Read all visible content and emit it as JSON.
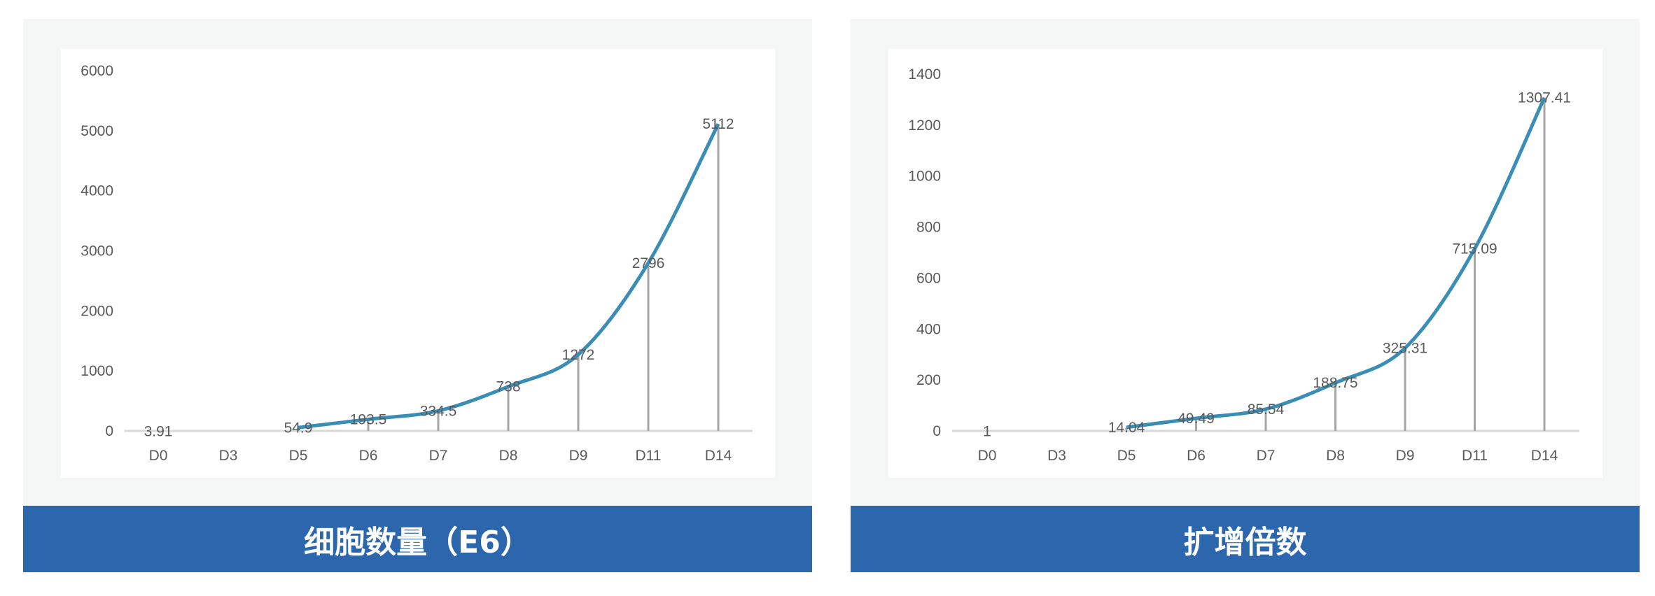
{
  "chart_data": [
    {
      "type": "line",
      "title": "细胞数量（E6）",
      "categories": [
        "D0",
        "D3",
        "D5",
        "D6",
        "D7",
        "D8",
        "D9",
        "D11",
        "D14"
      ],
      "values": [
        3.91,
        null,
        54.9,
        193.5,
        334.5,
        738,
        1272,
        2796,
        5112
      ],
      "data_labels": [
        "3.91",
        "",
        "54.9",
        "193.5",
        "334.5",
        "738",
        "1272",
        "2796",
        "5112"
      ],
      "ylim": [
        0,
        6000
      ],
      "yticks": [
        0,
        1000,
        2000,
        3000,
        4000,
        5000,
        6000
      ],
      "grid": false,
      "drop_lines": true,
      "line_color": "#3a8db4"
    },
    {
      "type": "line",
      "title": "扩增倍数",
      "categories": [
        "D0",
        "D3",
        "D5",
        "D6",
        "D7",
        "D8",
        "D9",
        "D11",
        "D14"
      ],
      "values": [
        1,
        null,
        14.04,
        49.49,
        85.54,
        188.75,
        325.31,
        715.09,
        1307.41
      ],
      "data_labels": [
        "1",
        "",
        "14.04",
        "49.49",
        "85.54",
        "188.75",
        "325.31",
        "715.09",
        "1307.41"
      ],
      "ylim": [
        0,
        1400
      ],
      "yticks": [
        0,
        200,
        400,
        600,
        800,
        1000,
        1200,
        1400
      ],
      "grid": false,
      "drop_lines": true,
      "line_color": "#3a8db4"
    }
  ],
  "colors": {
    "banner": "#2c67ae",
    "panel": "#f5f6f6",
    "line": "#3a8db4"
  }
}
